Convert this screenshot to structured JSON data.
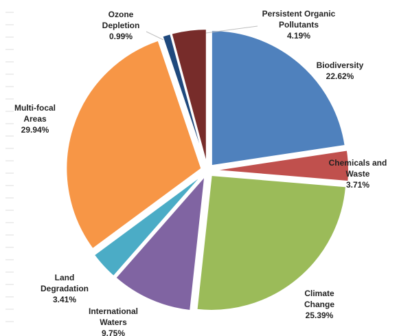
{
  "chart_data": {
    "type": "pie",
    "title": "",
    "slices": [
      {
        "label_lines": [
          "Biodiversity"
        ],
        "pct_label": "22.62%",
        "value": 22.62,
        "color": "#4F81BD"
      },
      {
        "label_lines": [
          "Chemicals and",
          "Waste"
        ],
        "pct_label": "3.71%",
        "value": 3.71,
        "color": "#C0504D"
      },
      {
        "label_lines": [
          "Climate",
          "Change"
        ],
        "pct_label": "25.39%",
        "value": 25.39,
        "color": "#9BBB59"
      },
      {
        "label_lines": [
          "International",
          "Waters"
        ],
        "pct_label": "9.75%",
        "value": 9.75,
        "color": "#8064A2"
      },
      {
        "label_lines": [
          "Land",
          "Degradation"
        ],
        "pct_label": "3.41%",
        "value": 3.41,
        "color": "#4BACC6"
      },
      {
        "label_lines": [
          "Multi-focal",
          "Areas"
        ],
        "pct_label": "29.94%",
        "value": 29.94,
        "color": "#F79646"
      },
      {
        "label_lines": [
          "Ozone",
          "Depletion"
        ],
        "pct_label": "0.99%",
        "value": 0.99,
        "color": "#1F497D"
      },
      {
        "label_lines": [
          "Persistent Organic",
          "Pollutants"
        ],
        "pct_label": "4.19%",
        "value": 4.19,
        "color": "#772C2A"
      }
    ]
  }
}
